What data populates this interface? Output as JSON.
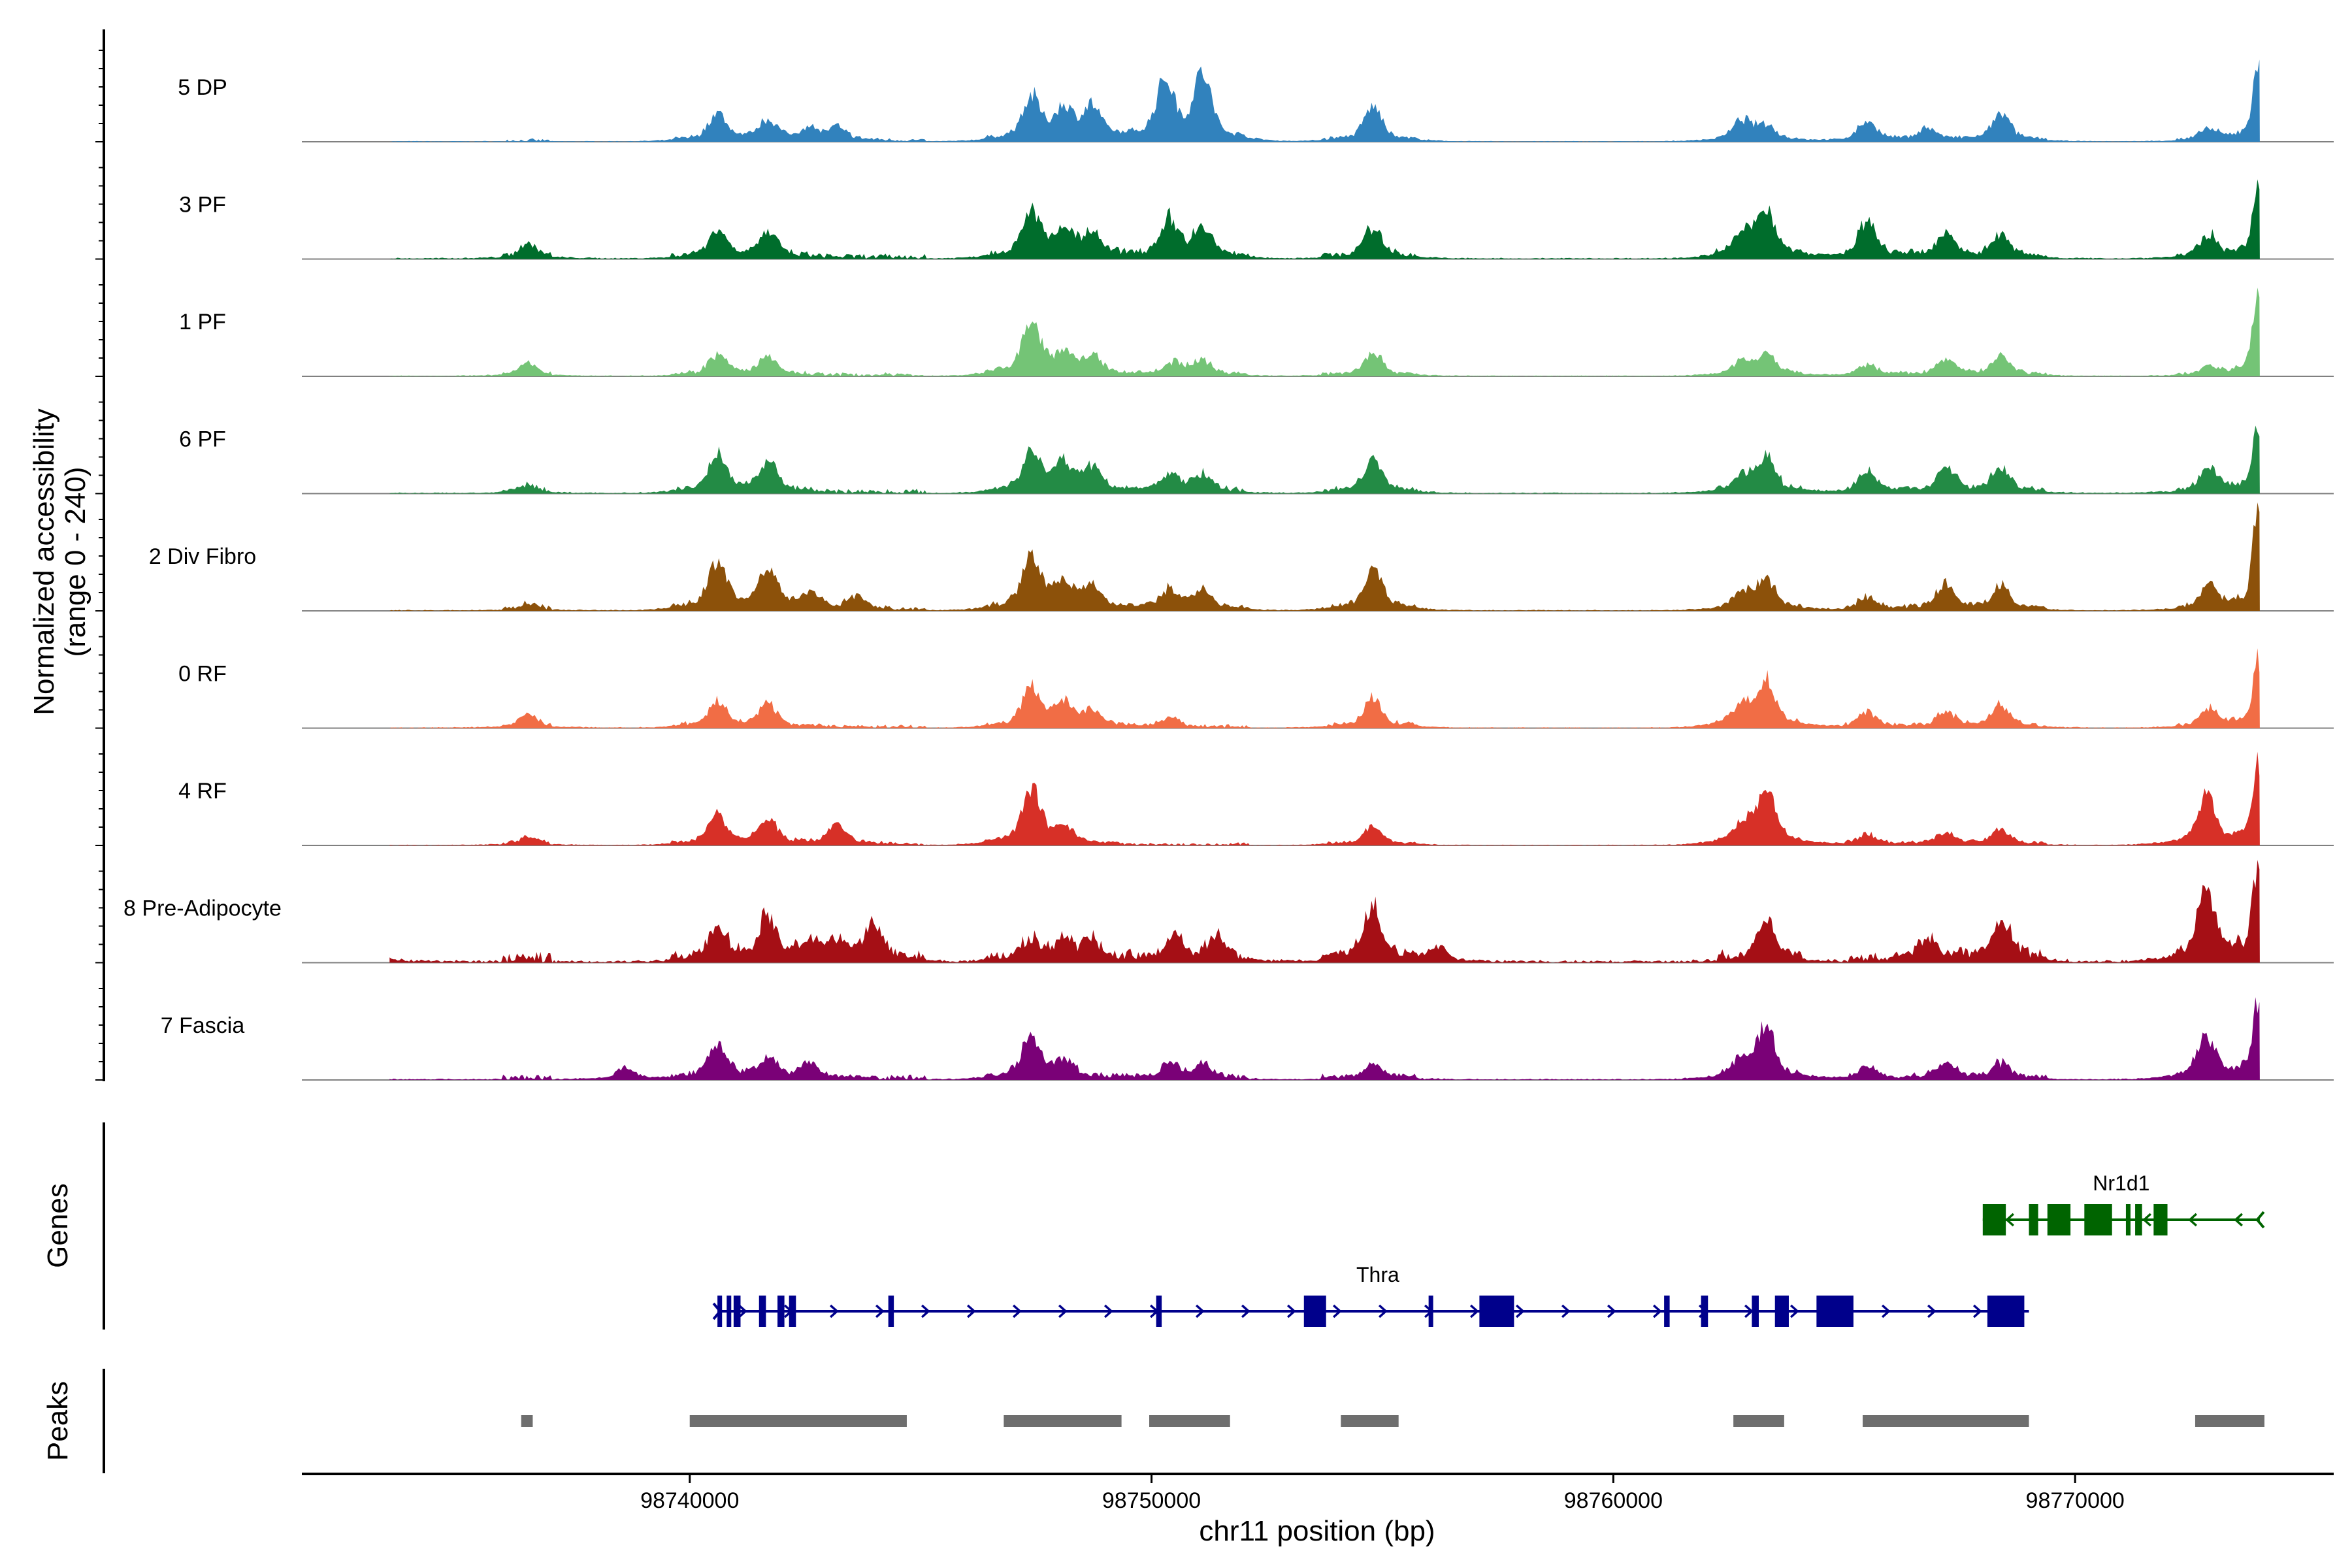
{
  "chart_data": {
    "type": "genome-coverage",
    "xlabel": "chr11 position (bp)",
    "ylabel_line1": "Normalized accessibility",
    "ylabel_line2": "(range 0 - 240)",
    "y_range": [
      0,
      240
    ],
    "xlim": [
      98731600,
      98775600
    ],
    "xticks": [
      98740000,
      98750000,
      98760000,
      98770000
    ],
    "xtick_labels": [
      "98740000",
      "98750000",
      "98760000",
      "98770000"
    ],
    "tracks": [
      {
        "name": "5 DP",
        "color": "#3182BD",
        "peaks": [
          [
            98740600,
            55
          ],
          [
            98741700,
            40
          ],
          [
            98742600,
            25
          ],
          [
            98743200,
            25
          ],
          [
            98747400,
            85
          ],
          [
            98748100,
            60
          ],
          [
            98748700,
            65
          ],
          [
            98750300,
            120
          ],
          [
            98751100,
            130
          ],
          [
            98754800,
            70
          ],
          [
            98762800,
            40
          ],
          [
            98763300,
            30
          ],
          [
            98765500,
            40
          ],
          [
            98766800,
            25
          ],
          [
            98768400,
            55
          ],
          [
            98772900,
            25
          ],
          [
            98773950,
            165
          ]
        ],
        "noise": 6
      },
      {
        "name": "3 PF",
        "color": "#006D2C",
        "peaks": [
          [
            98736500,
            28
          ],
          [
            98740600,
            55
          ],
          [
            98741700,
            50
          ],
          [
            98747400,
            95
          ],
          [
            98748100,
            50
          ],
          [
            98748700,
            45
          ],
          [
            98750400,
            75
          ],
          [
            98751100,
            60
          ],
          [
            98754800,
            60
          ],
          [
            98762800,
            40
          ],
          [
            98763300,
            100
          ],
          [
            98765500,
            70
          ],
          [
            98767200,
            45
          ],
          [
            98768400,
            45
          ],
          [
            98772900,
            45
          ],
          [
            98773950,
            150
          ]
        ],
        "noise": 10
      },
      {
        "name": "1 PF",
        "color": "#74C476",
        "peaks": [
          [
            98736500,
            22
          ],
          [
            98740600,
            40
          ],
          [
            98741700,
            35
          ],
          [
            98747400,
            110
          ],
          [
            98748100,
            40
          ],
          [
            98748700,
            35
          ],
          [
            98750500,
            25
          ],
          [
            98751100,
            30
          ],
          [
            98754800,
            45
          ],
          [
            98762800,
            25
          ],
          [
            98763300,
            40
          ],
          [
            98765500,
            20
          ],
          [
            98767200,
            30
          ],
          [
            98768400,
            40
          ],
          [
            98772900,
            20
          ],
          [
            98773950,
            165
          ]
        ],
        "noise": 7
      },
      {
        "name": "6 PF",
        "color": "#238B45",
        "peaks": [
          [
            98736500,
            15
          ],
          [
            98740600,
            75
          ],
          [
            98741700,
            60
          ],
          [
            98747400,
            80
          ],
          [
            98748100,
            55
          ],
          [
            98748700,
            45
          ],
          [
            98750400,
            35
          ],
          [
            98751100,
            35
          ],
          [
            98754800,
            70
          ],
          [
            98762800,
            30
          ],
          [
            98763300,
            70
          ],
          [
            98765500,
            40
          ],
          [
            98767200,
            50
          ],
          [
            98768400,
            50
          ],
          [
            98772900,
            50
          ],
          [
            98773950,
            130
          ]
        ],
        "noise": 9
      },
      {
        "name": "2 Div Fibro",
        "color": "#8C510A",
        "peaks": [
          [
            98736500,
            12
          ],
          [
            98740600,
            100
          ],
          [
            98741700,
            85
          ],
          [
            98742600,
            30
          ],
          [
            98743600,
            25
          ],
          [
            98747400,
            115
          ],
          [
            98748100,
            50
          ],
          [
            98748700,
            45
          ],
          [
            98750400,
            40
          ],
          [
            98751100,
            40
          ],
          [
            98754800,
            85
          ],
          [
            98762800,
            30
          ],
          [
            98763300,
            60
          ],
          [
            98765500,
            25
          ],
          [
            98767200,
            50
          ],
          [
            98768400,
            45
          ],
          [
            98772900,
            50
          ],
          [
            98773950,
            210
          ]
        ],
        "noise": 8
      },
      {
        "name": "0 RF",
        "color": "#F16D45",
        "peaks": [
          [
            98736500,
            25
          ],
          [
            98740600,
            50
          ],
          [
            98741700,
            45
          ],
          [
            98747400,
            75
          ],
          [
            98748100,
            45
          ],
          [
            98748700,
            30
          ],
          [
            98750400,
            20
          ],
          [
            98754800,
            60
          ],
          [
            98762800,
            45
          ],
          [
            98763300,
            95
          ],
          [
            98765500,
            30
          ],
          [
            98767200,
            30
          ],
          [
            98768400,
            45
          ],
          [
            98772900,
            40
          ],
          [
            98773950,
            135
          ]
        ],
        "noise": 7
      },
      {
        "name": "4 RF",
        "color": "#D73027",
        "peaks": [
          [
            98736500,
            15
          ],
          [
            98740600,
            60
          ],
          [
            98741700,
            50
          ],
          [
            98743200,
            40
          ],
          [
            98747400,
            115
          ],
          [
            98748100,
            35
          ],
          [
            98754800,
            40
          ],
          [
            98762800,
            35
          ],
          [
            98763300,
            115
          ],
          [
            98765500,
            20
          ],
          [
            98767200,
            25
          ],
          [
            98768400,
            30
          ],
          [
            98772850,
            100
          ],
          [
            98773950,
            180
          ]
        ],
        "noise": 6
      },
      {
        "name": "8 Pre-Adipocyte",
        "color": "#A50F15",
        "peaks": [
          [
            98733200,
            25
          ],
          [
            98740600,
            60
          ],
          [
            98741700,
            85
          ],
          [
            98742600,
            35
          ],
          [
            98743200,
            30
          ],
          [
            98744000,
            70
          ],
          [
            98747400,
            35
          ],
          [
            98748100,
            35
          ],
          [
            98748700,
            35
          ],
          [
            98750500,
            40
          ],
          [
            98751400,
            45
          ],
          [
            98754800,
            100
          ],
          [
            98756200,
            30
          ],
          [
            98763300,
            75
          ],
          [
            98766800,
            40
          ],
          [
            98768400,
            80
          ],
          [
            98772850,
            140
          ],
          [
            98773950,
            200
          ]
        ],
        "noise": 20
      },
      {
        "name": "7 Fascia",
        "color": "#7A0177",
        "peaks": [
          [
            98738600,
            25
          ],
          [
            98740600,
            70
          ],
          [
            98741700,
            40
          ],
          [
            98742600,
            30
          ],
          [
            98747400,
            85
          ],
          [
            98748100,
            35
          ],
          [
            98750400,
            30
          ],
          [
            98751100,
            25
          ],
          [
            98754800,
            30
          ],
          [
            98762800,
            35
          ],
          [
            98763300,
            100
          ],
          [
            98765500,
            25
          ],
          [
            98767200,
            30
          ],
          [
            98768400,
            30
          ],
          [
            98772850,
            90
          ],
          [
            98773950,
            160
          ]
        ],
        "noise": 10
      }
    ],
    "genes": [
      {
        "name": "Thra",
        "strand": "+",
        "color": "#00008B",
        "start": 98740600,
        "end": 98769000,
        "exons": [
          [
            98740600,
            98740700
          ],
          [
            98740800,
            98740850
          ],
          [
            98740950,
            98741100
          ],
          [
            98741500,
            98741650
          ],
          [
            98741900,
            98742050
          ],
          [
            98742150,
            98742300
          ],
          [
            98744300,
            98744420
          ],
          [
            98750100,
            98750220
          ],
          [
            98753300,
            98753780
          ],
          [
            98756000,
            98756050
          ],
          [
            98757100,
            98757850
          ],
          [
            98761100,
            98761220
          ],
          [
            98761900,
            98762050
          ],
          [
            98763000,
            98763150
          ],
          [
            98763500,
            98763800
          ],
          [
            98764400,
            98765200
          ],
          [
            98768100,
            98768900
          ]
        ]
      },
      {
        "name": "Nr1d1",
        "strand": "-",
        "color": "#006400",
        "start": 98768000,
        "end": 98774000,
        "exons": [
          [
            98768000,
            98768500
          ],
          [
            98769000,
            98769200
          ],
          [
            98769400,
            98769900
          ],
          [
            98770200,
            98770800
          ],
          [
            98771100,
            98771200
          ],
          [
            98771300,
            98771450
          ],
          [
            98771700,
            98772000
          ]
        ]
      }
    ],
    "peak_regions": [
      [
        98736350,
        98736600
      ],
      [
        98740000,
        98744700
      ],
      [
        98746800,
        98749350
      ],
      [
        98749950,
        98751700
      ],
      [
        98754100,
        98755350
      ],
      [
        98762600,
        98763700
      ],
      [
        98765400,
        98769000
      ],
      [
        98772600,
        98774100
      ]
    ],
    "panel_labels": {
      "genes": "Genes",
      "peaks": "Peaks"
    }
  }
}
